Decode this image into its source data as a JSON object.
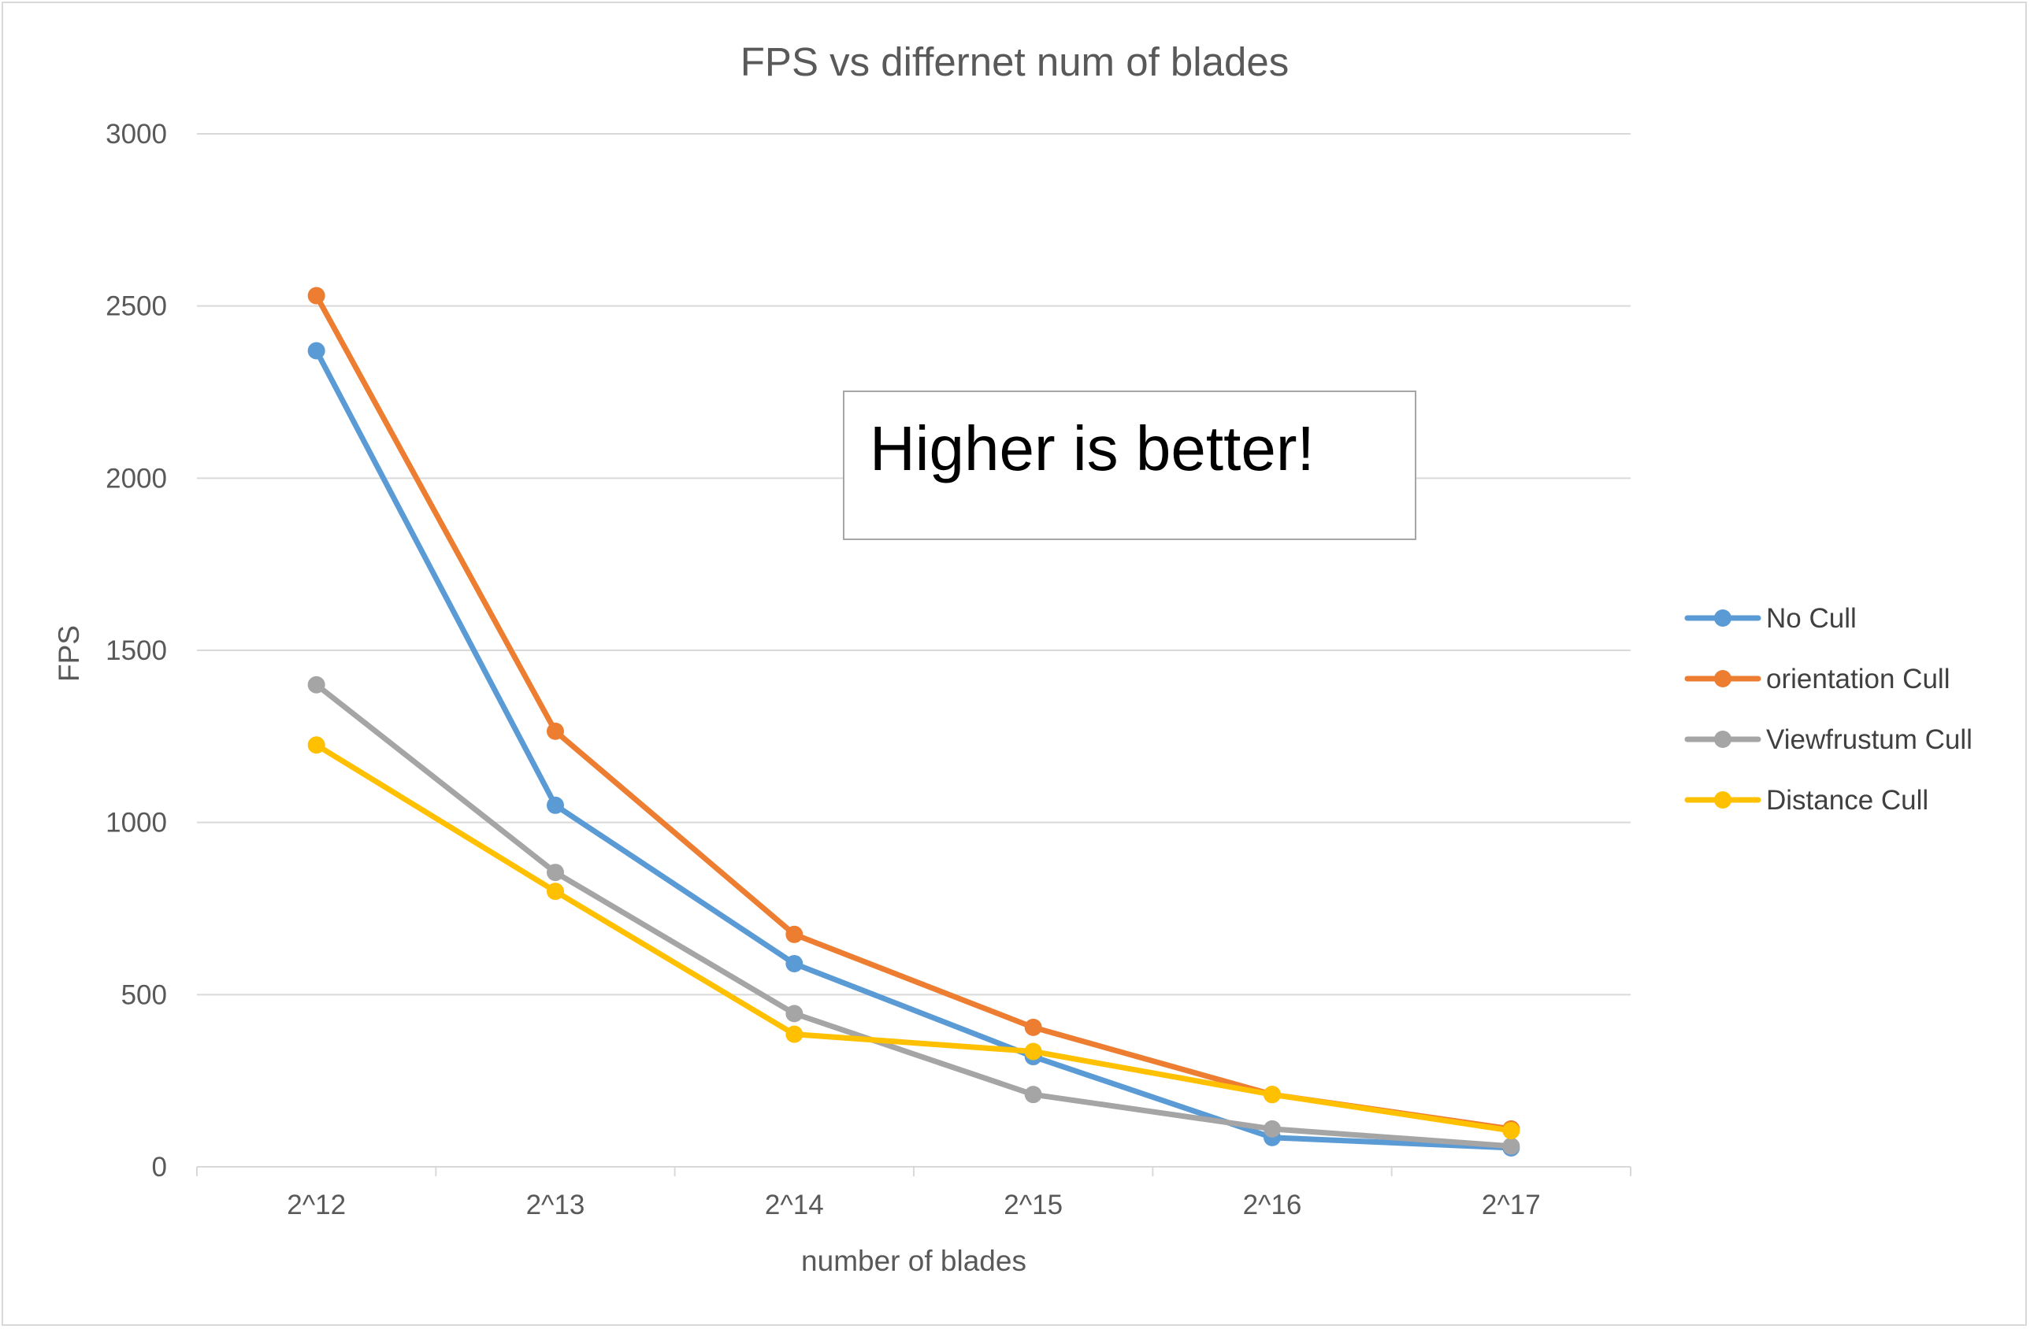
{
  "chart_data": {
    "type": "line",
    "title": "FPS vs differnet num of blades",
    "xlabel": "number of blades",
    "ylabel": "FPS",
    "categories": [
      "2^12",
      "2^13",
      "2^14",
      "2^15",
      "2^16",
      "2^17"
    ],
    "ylim": [
      0,
      3000
    ],
    "yticks": [
      "0",
      "500",
      "1000",
      "1500",
      "2000",
      "2500",
      "3000"
    ],
    "grid": "horizontal",
    "legend_position": "right",
    "series": [
      {
        "name": "No Cull",
        "color": "#5b9bd5",
        "values": [
          2370,
          1050,
          590,
          320,
          85,
          55
        ]
      },
      {
        "name": "orientation Cull",
        "color": "#ed7d31",
        "values": [
          2530,
          1265,
          675,
          405,
          210,
          110
        ]
      },
      {
        "name": "Viewfrustum Cull",
        "color": "#a5a5a5",
        "values": [
          1400,
          855,
          445,
          210,
          110,
          60
        ]
      },
      {
        "name": "Distance Cull",
        "color": "#ffc000",
        "values": [
          1225,
          800,
          385,
          335,
          210,
          105
        ]
      }
    ],
    "annotation": "Higher is better!"
  }
}
